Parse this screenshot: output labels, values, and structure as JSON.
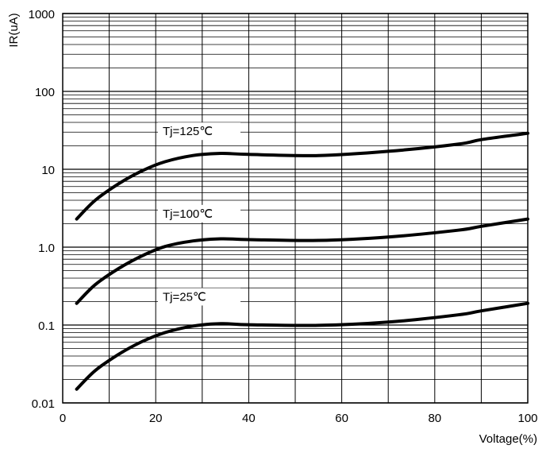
{
  "chart_data": {
    "type": "line",
    "xlabel": "Voltage(%)",
    "ylabel": "IR(uA)",
    "xlim": [
      0,
      100
    ],
    "ylim": [
      0.01,
      1000
    ],
    "yscale": "log",
    "grid": true,
    "x_ticks": [
      "0",
      "20",
      "40",
      "60",
      "80",
      "100"
    ],
    "y_ticks": [
      "0.01",
      "0.1",
      "1.0",
      "10",
      "100",
      "1000"
    ],
    "series": [
      {
        "name": "Tj=125℃",
        "x": [
          3,
          7,
          12,
          17,
          22,
          28,
          34,
          40,
          55,
          70,
          85,
          90,
          100
        ],
        "y": [
          2.3,
          4.0,
          6.5,
          9.5,
          12.5,
          15.0,
          16.0,
          15.5,
          15.0,
          17.0,
          21.0,
          24.0,
          29.0
        ]
      },
      {
        "name": "Tj=100℃",
        "x": [
          3,
          7,
          12,
          17,
          22,
          28,
          34,
          40,
          55,
          70,
          85,
          90,
          100
        ],
        "y": [
          0.19,
          0.33,
          0.53,
          0.77,
          1.02,
          1.2,
          1.28,
          1.25,
          1.22,
          1.35,
          1.65,
          1.85,
          2.3
        ]
      },
      {
        "name": "Tj=25℃",
        "x": [
          3,
          7,
          12,
          17,
          22,
          28,
          34,
          40,
          55,
          70,
          85,
          90,
          100
        ],
        "y": [
          0.015,
          0.026,
          0.042,
          0.061,
          0.08,
          0.097,
          0.104,
          0.101,
          0.099,
          0.109,
          0.135,
          0.152,
          0.19
        ]
      }
    ]
  }
}
